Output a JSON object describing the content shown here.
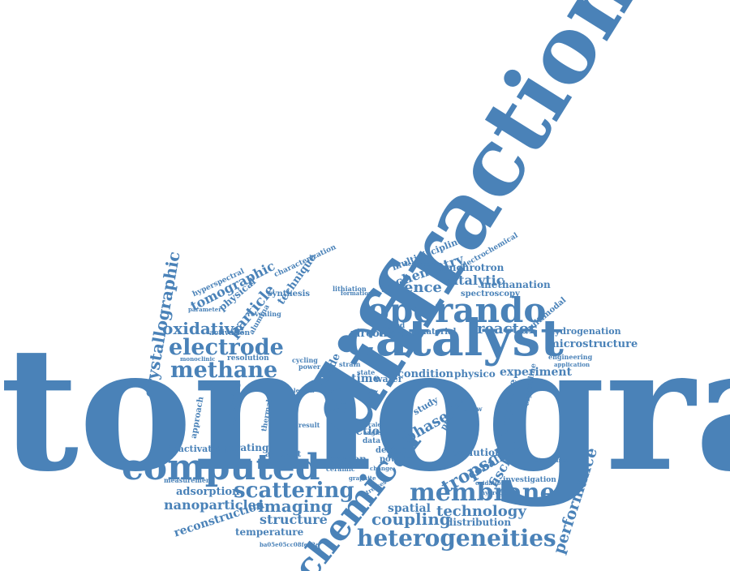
{
  "cloud": {
    "color": "#4a82b8",
    "words": [
      "tomography",
      "diffraction",
      "catalyst",
      "operando",
      "computed",
      "chemical",
      "membrane",
      "heterogeneities",
      "electrode",
      "methane",
      "scattering",
      "imaging",
      "structure",
      "oxidative",
      "particle",
      "tomographic",
      "crystallographic",
      "technique",
      "physical",
      "chemistry",
      "science",
      "catalytic",
      "synchrotron",
      "methanation",
      "spectroscopy",
      "reactor",
      "microstructure",
      "hydrogenation",
      "experiment",
      "condition",
      "tropsch",
      "fischer",
      "cobalt",
      "phase",
      "reaction",
      "coupling",
      "distribution",
      "spatial",
      "technology",
      "performance",
      "nanoparticles",
      "reconstruction",
      "temperature",
      "adsorption",
      "deactivation",
      "operating",
      "measurement",
      "multidisciplinary",
      "electrochemical",
      "multimodal",
      "zirconia",
      "anode",
      "time",
      "water",
      "physico",
      "evolution",
      "composite",
      "printing",
      "study",
      "hollow",
      "fuel",
      "cell",
      "work",
      "design",
      "powder",
      "oxygen",
      "ceramic",
      "artefact",
      "result",
      "properties",
      "approach",
      "crystalline",
      "investigation",
      "structured",
      "alumina",
      "cycling",
      "resolution",
      "activation",
      "monoclinic",
      "hyperspectral",
      "characterization",
      "parameter",
      "revealing",
      "material",
      "support",
      "based",
      "dependence",
      "engineering",
      "application",
      "ba05e05cc08fe02e",
      "synthesis",
      "lithiation",
      "formation",
      "state",
      "strain",
      "power",
      "oxidation",
      "hydrogen",
      "graphite",
      "change",
      "size",
      "data",
      "scale",
      "angle",
      "length",
      "thermal",
      "stresses"
    ]
  }
}
